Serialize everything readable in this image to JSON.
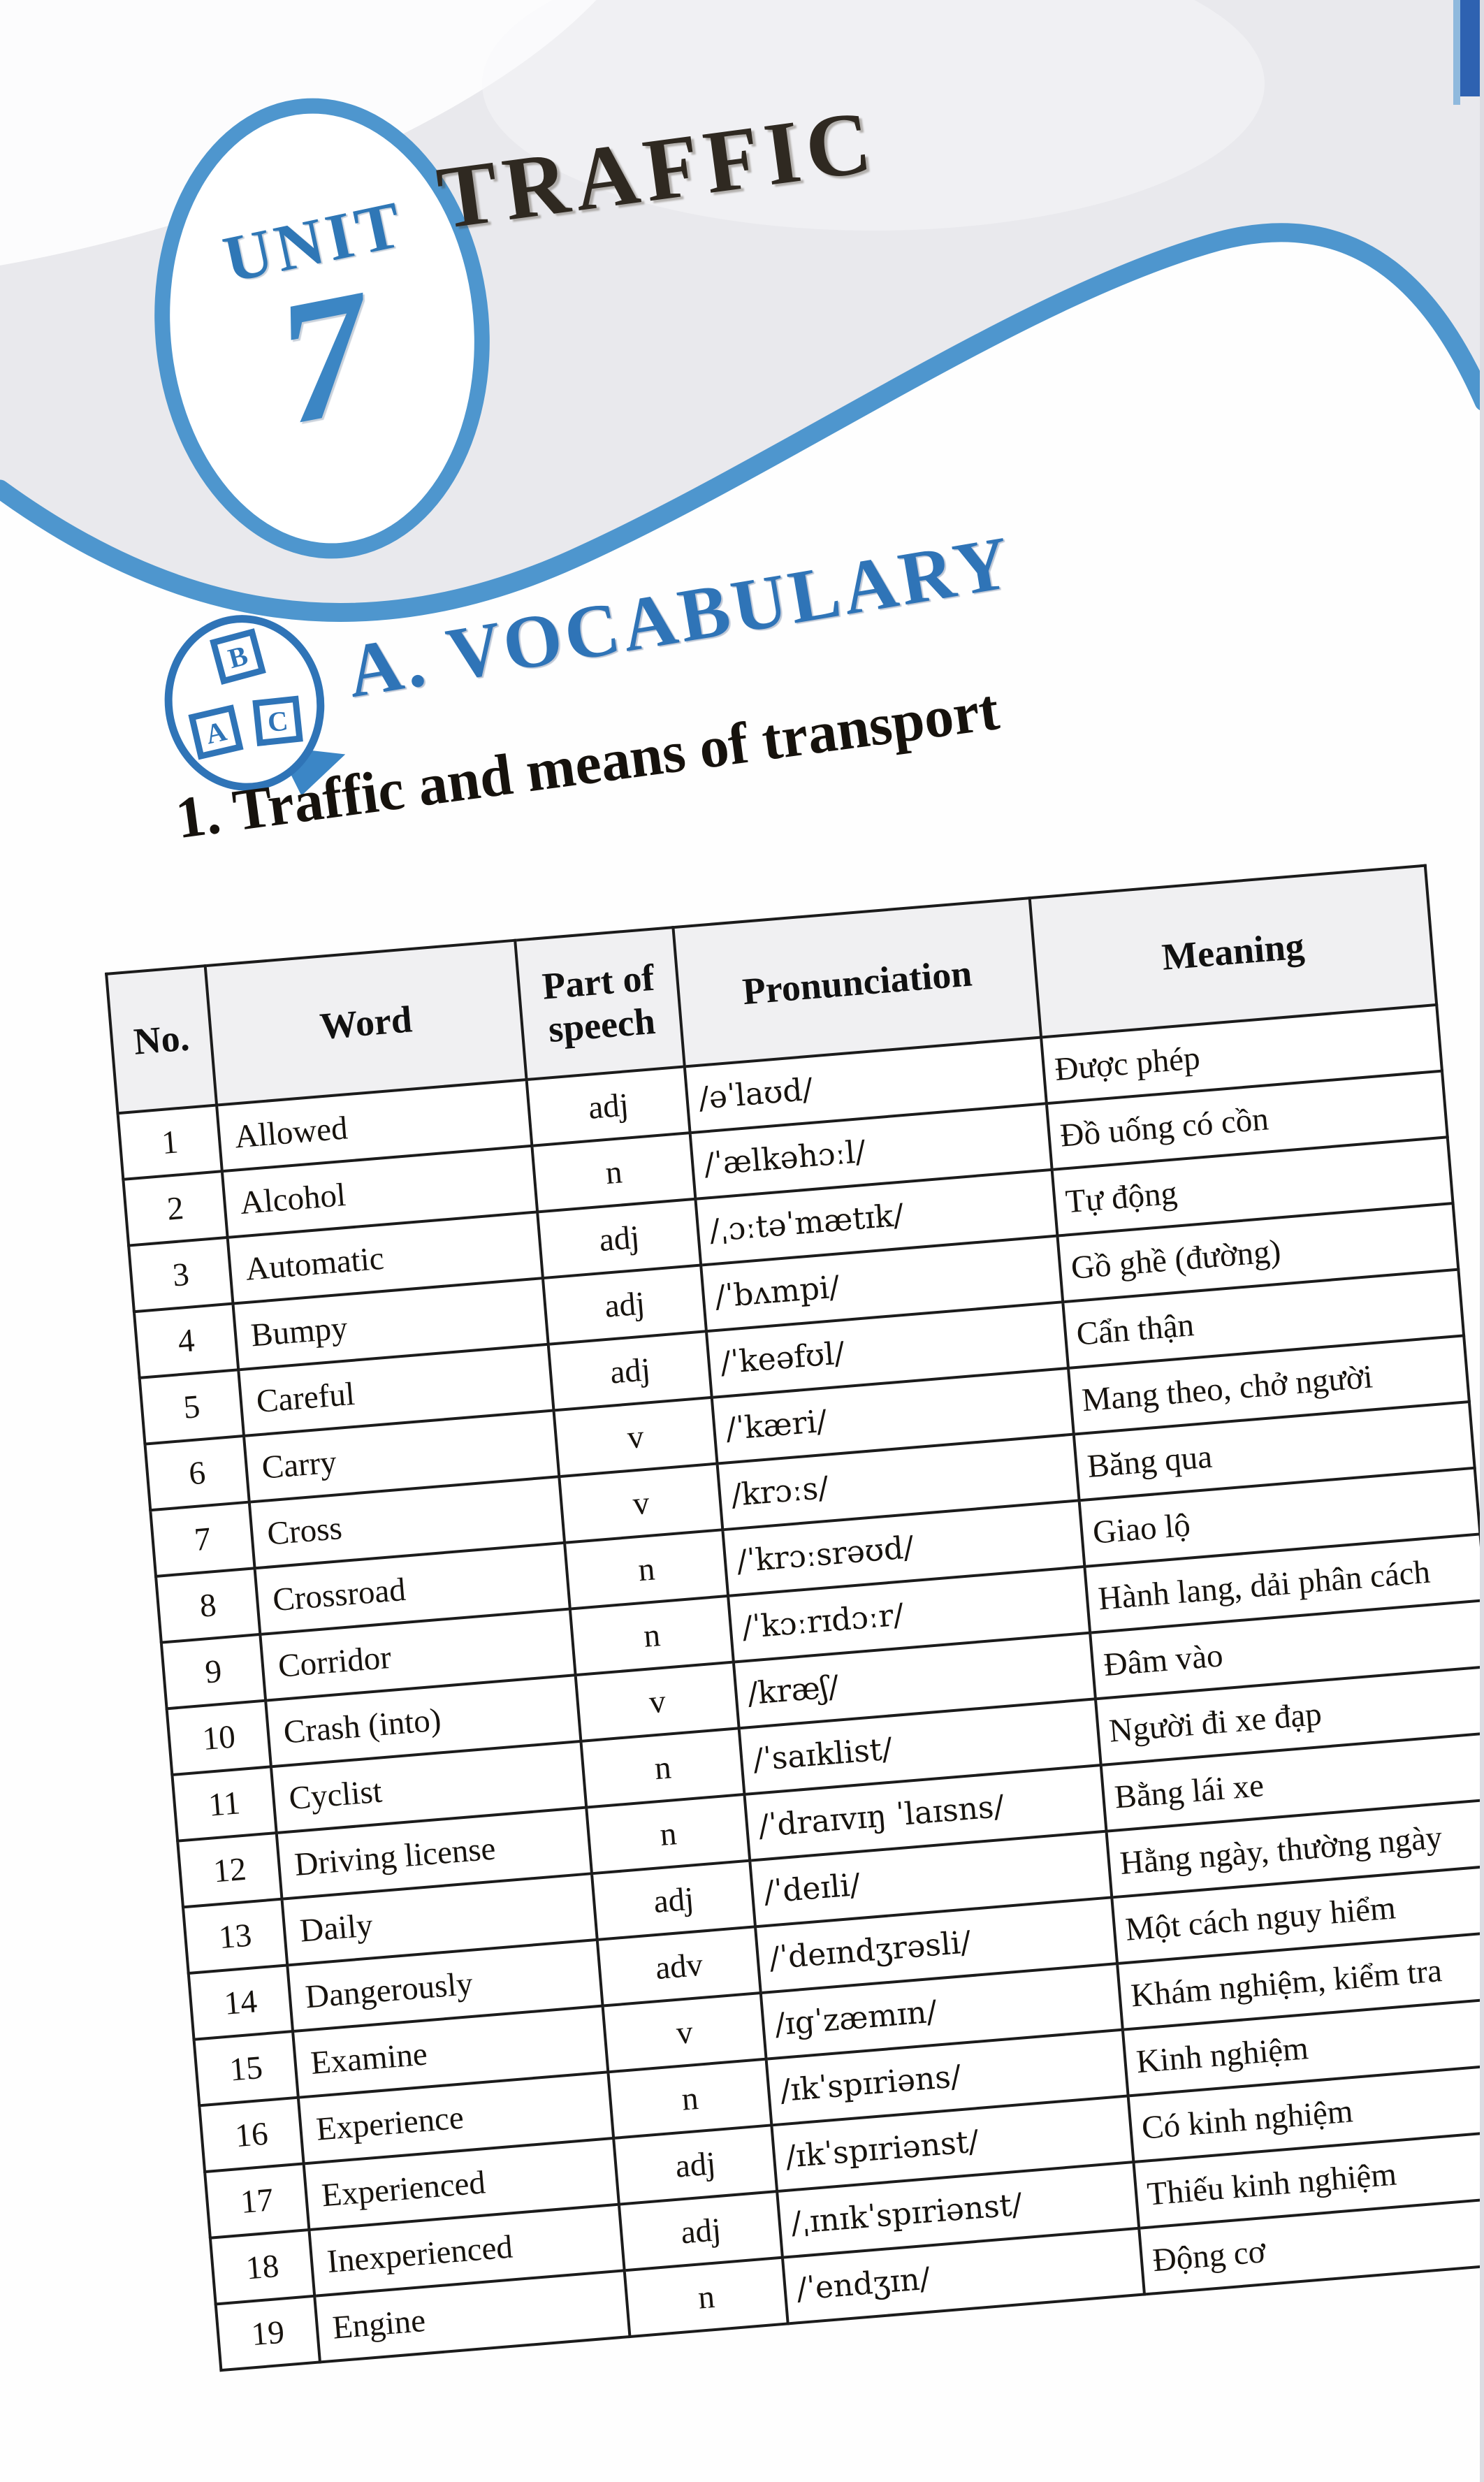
{
  "header": {
    "unit_label": "UNIT",
    "unit_number": "7",
    "title": "TRAFFIC",
    "accent_blue": "#4e96ce",
    "dark_blue_corner": "#2e62b1"
  },
  "section": {
    "title": "A. VOCABULARY",
    "accent": "#2f74b7",
    "icon_letters": [
      "B",
      "A",
      "C"
    ]
  },
  "subsection": {
    "title": "1. Traffic and means of transport"
  },
  "table": {
    "columns": [
      "No.",
      "Word",
      "Part of speech",
      "Pronunciation",
      "Meaning"
    ],
    "rows": [
      {
        "no": "1",
        "word": "Allowed",
        "part_of_speech": "adj",
        "pronunciation": "/əˈlaʊd/",
        "meaning": "Được phép"
      },
      {
        "no": "2",
        "word": "Alcohol",
        "part_of_speech": "n",
        "pronunciation": "/ˈælkəhɔːl/",
        "meaning": "Đồ uống có cồn"
      },
      {
        "no": "3",
        "word": "Automatic",
        "part_of_speech": "adj",
        "pronunciation": "/ˌɔːtəˈmætɪk/",
        "meaning": "Tự động"
      },
      {
        "no": "4",
        "word": "Bumpy",
        "part_of_speech": "adj",
        "pronunciation": "/ˈbʌmpi/",
        "meaning": "Gồ ghề (đường)"
      },
      {
        "no": "5",
        "word": "Careful",
        "part_of_speech": "adj",
        "pronunciation": "/ˈkeəfʊl/",
        "meaning": "Cẩn thận"
      },
      {
        "no": "6",
        "word": "Carry",
        "part_of_speech": "v",
        "pronunciation": "/ˈkæri/",
        "meaning": "Mang theo, chở người"
      },
      {
        "no": "7",
        "word": "Cross",
        "part_of_speech": "v",
        "pronunciation": "/krɔːs/",
        "meaning": "Băng qua"
      },
      {
        "no": "8",
        "word": "Crossroad",
        "part_of_speech": "n",
        "pronunciation": "/ˈkrɔːsrəʊd/",
        "meaning": "Giao lộ"
      },
      {
        "no": "9",
        "word": "Corridor",
        "part_of_speech": "n",
        "pronunciation": "/ˈkɔːrɪdɔːr/",
        "meaning": "Hành lang, dải phân cách"
      },
      {
        "no": "10",
        "word": "Crash (into)",
        "part_of_speech": "v",
        "pronunciation": "/kræʃ/",
        "meaning": "Đâm vào"
      },
      {
        "no": "11",
        "word": "Cyclist",
        "part_of_speech": "n",
        "pronunciation": "/ˈsaɪklist/",
        "meaning": "Người đi xe đạp"
      },
      {
        "no": "12",
        "word": "Driving license",
        "part_of_speech": "n",
        "pronunciation": "/ˈdraɪvɪŋ ˈlaɪsns/",
        "meaning": "Bằng lái xe"
      },
      {
        "no": "13",
        "word": "Daily",
        "part_of_speech": "adj",
        "pronunciation": "/ˈdeɪli/",
        "meaning": "Hằng ngày, thường ngày"
      },
      {
        "no": "14",
        "word": "Dangerously",
        "part_of_speech": "adv",
        "pronunciation": "/ˈdeɪndʒrəsli/",
        "meaning": "Một cách nguy hiểm"
      },
      {
        "no": "15",
        "word": "Examine",
        "part_of_speech": "v",
        "pronunciation": "/ɪgˈzæmɪn/",
        "meaning": "Khám nghiệm, kiểm tra"
      },
      {
        "no": "16",
        "word": "Experience",
        "part_of_speech": "n",
        "pronunciation": "/ɪkˈspɪriəns/",
        "meaning": "Kinh nghiệm"
      },
      {
        "no": "17",
        "word": "Experienced",
        "part_of_speech": "adj",
        "pronunciation": "/ɪkˈspɪriənst/",
        "meaning": "Có kinh nghiệm"
      },
      {
        "no": "18",
        "word": "Inexperienced",
        "part_of_speech": "adj",
        "pronunciation": "/ˌɪnɪkˈspɪriənst/",
        "meaning": "Thiếu kinh nghiệm"
      },
      {
        "no": "19",
        "word": "Engine",
        "part_of_speech": "n",
        "pronunciation": "/ˈendʒɪn/",
        "meaning": "Động cơ"
      }
    ]
  }
}
